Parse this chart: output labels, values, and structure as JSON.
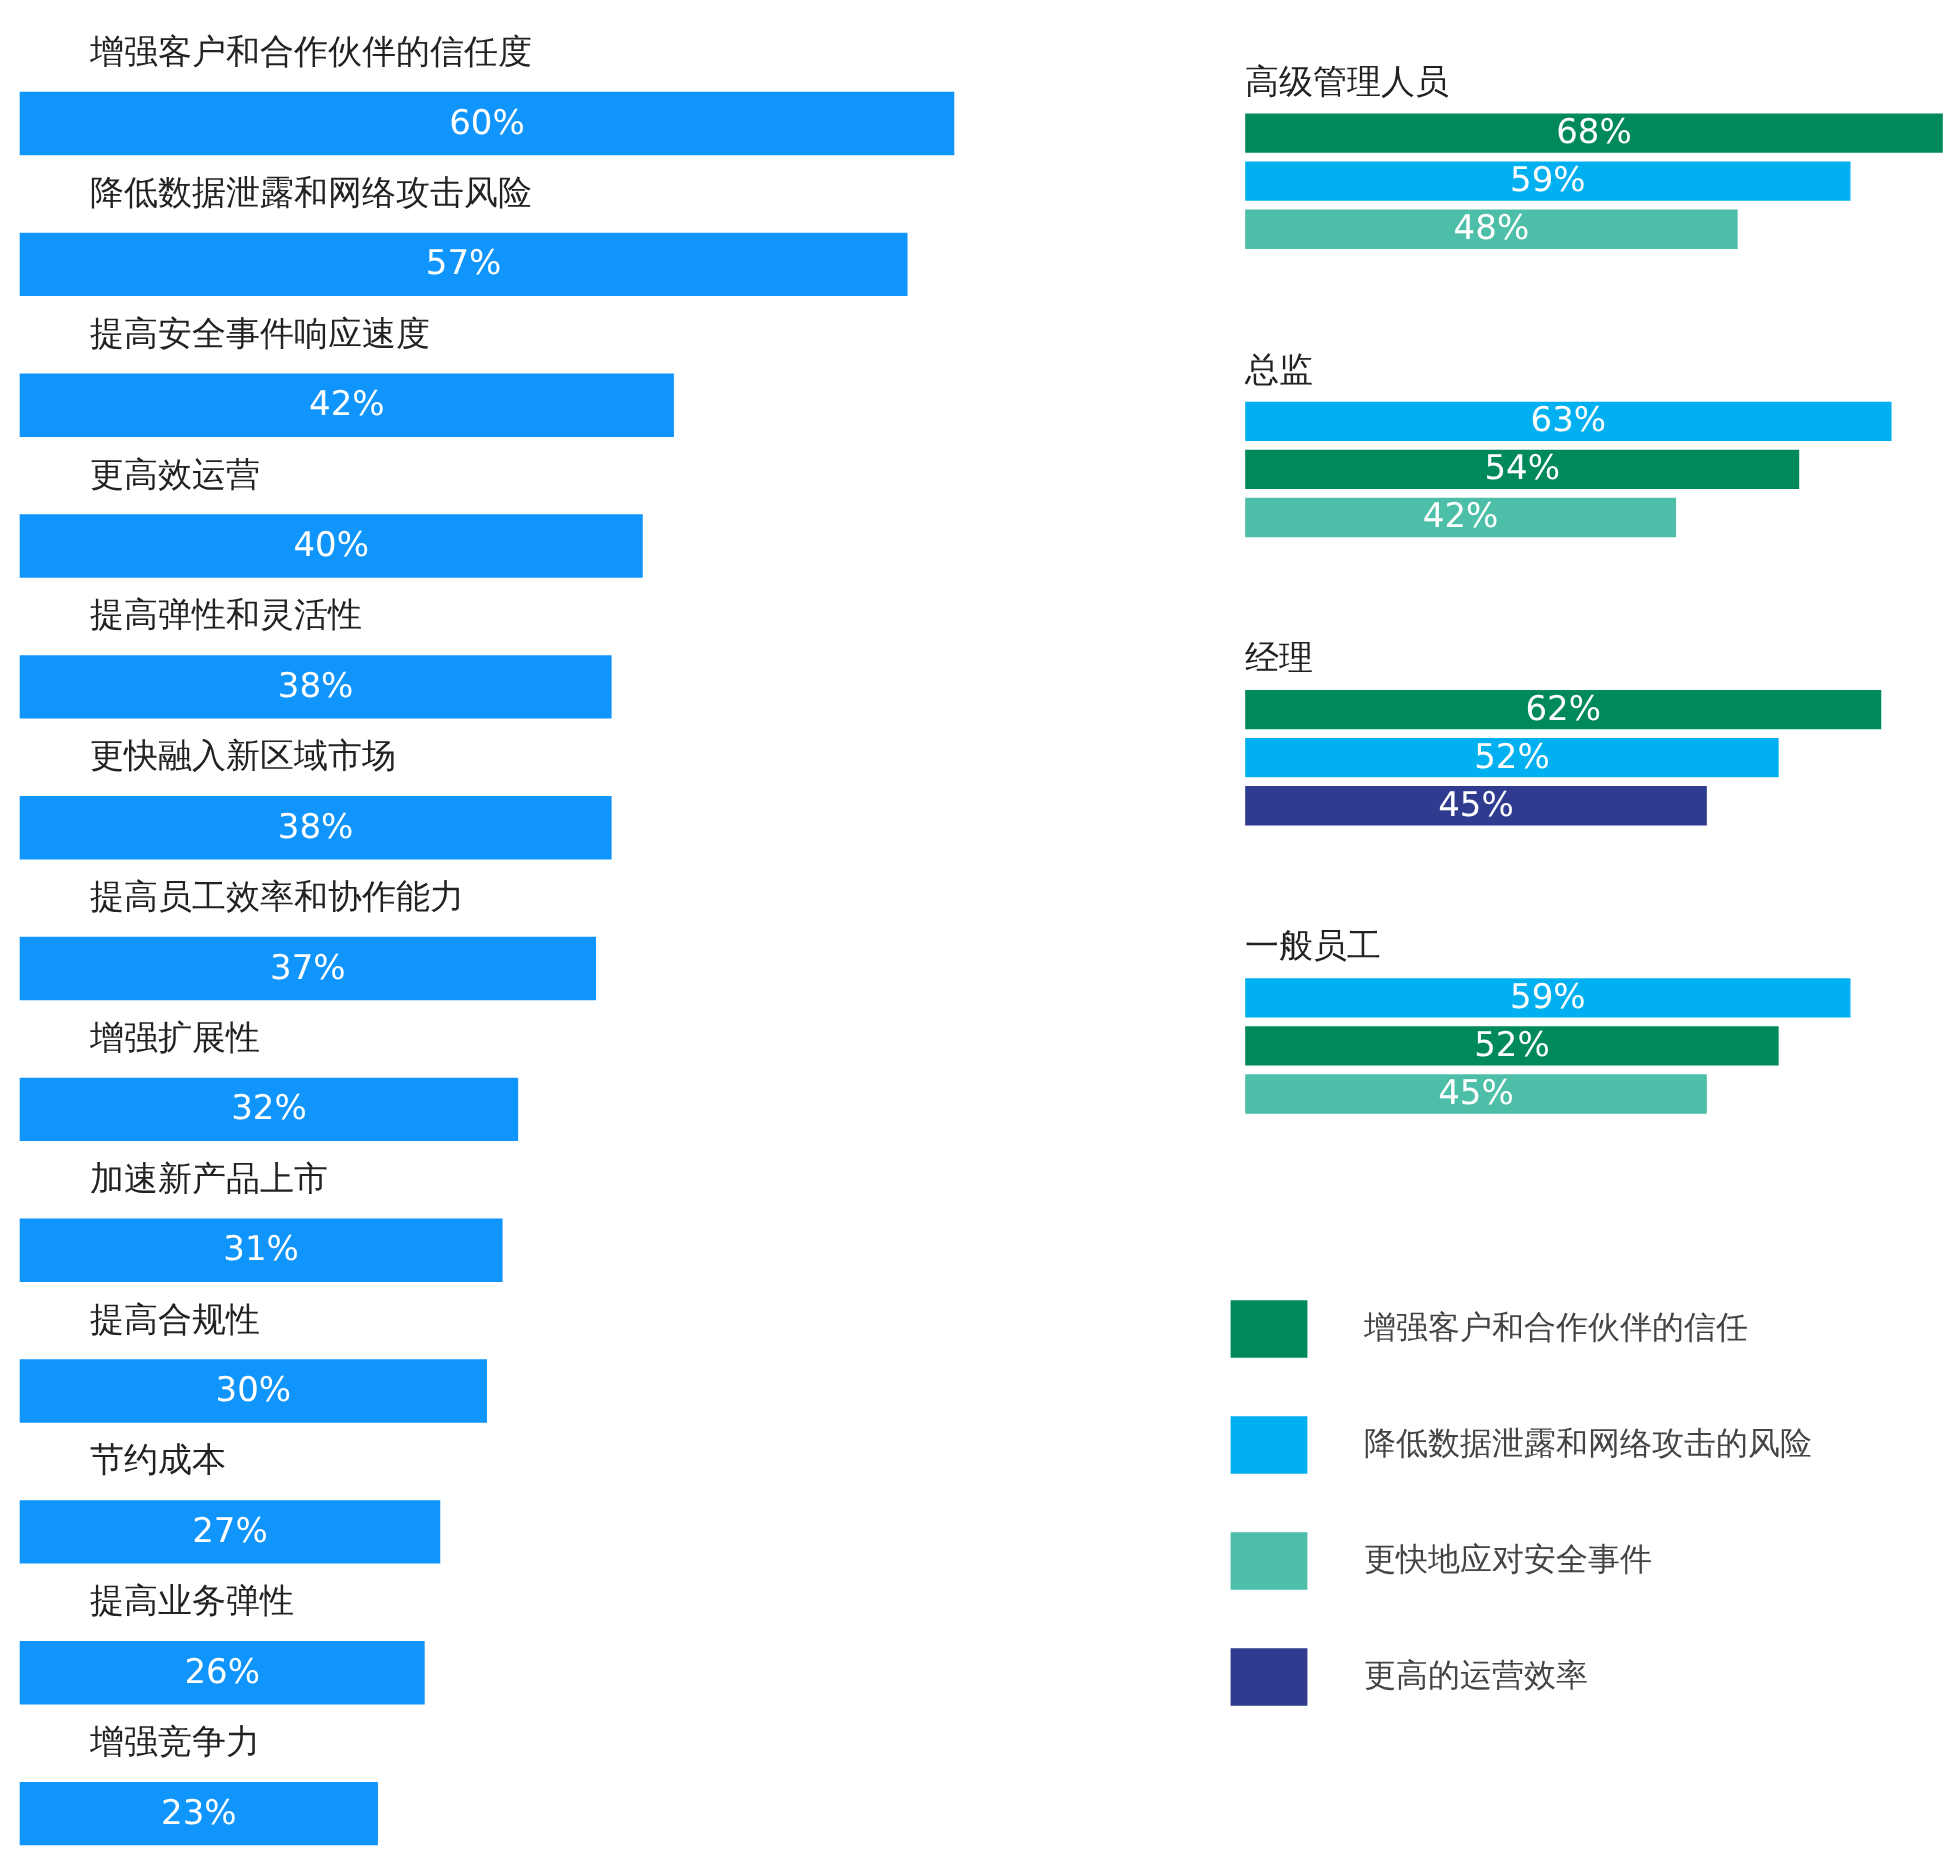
{
  "chart_data": [
    {
      "type": "bar",
      "orientation": "horizontal",
      "categories": [
        "增强客户和合作伙伴的信任度",
        "降低数据泄露和网络攻击风险",
        "提高安全事件响应速度",
        "更高效运营",
        "提高弹性和灵活性",
        "更快融入新区域市场",
        "提高员工效率和协作能力",
        "增强扩展性",
        "加速新产品上市",
        "提高合规性",
        "节约成本",
        "提高业务弹性",
        "增强竞争力"
      ],
      "values": [
        60,
        57,
        42,
        40,
        38,
        38,
        37,
        32,
        31,
        30,
        27,
        26,
        23
      ],
      "value_labels": [
        "60%",
        "57%",
        "42%",
        "40%",
        "38%",
        "38%",
        "37%",
        "32%",
        "31%",
        "30%",
        "27%",
        "26%",
        "23%"
      ],
      "color": "#0f95fb"
    },
    {
      "type": "bar",
      "orientation": "horizontal",
      "legend": "bottom",
      "categories": [
        "高级管理人员",
        "总监",
        "经理",
        "一般员工"
      ],
      "series": [
        {
          "name": "增强客户和合作伙伴的信任",
          "color": "#008a5a",
          "values": [
            68,
            54,
            62,
            52
          ],
          "value_labels": [
            "68%",
            "54%",
            "62%",
            "52%"
          ]
        },
        {
          "name": "降低数据泄露和网络攻击的风险",
          "color": "#00b0f0",
          "values": [
            59,
            63,
            52,
            59
          ],
          "value_labels": [
            "59%",
            "63%",
            "52%",
            "59%"
          ]
        },
        {
          "name": "更快地应对安全事件",
          "color": "#4dbfa8",
          "values": [
            48,
            42,
            null,
            45
          ],
          "value_labels": [
            "48%",
            "42%",
            null,
            "45%"
          ]
        },
        {
          "name": "更高的运营效率",
          "color": "#2e3b8e",
          "values": [
            null,
            null,
            45,
            null
          ],
          "value_labels": [
            null,
            null,
            "45%",
            null
          ]
        }
      ]
    }
  ]
}
